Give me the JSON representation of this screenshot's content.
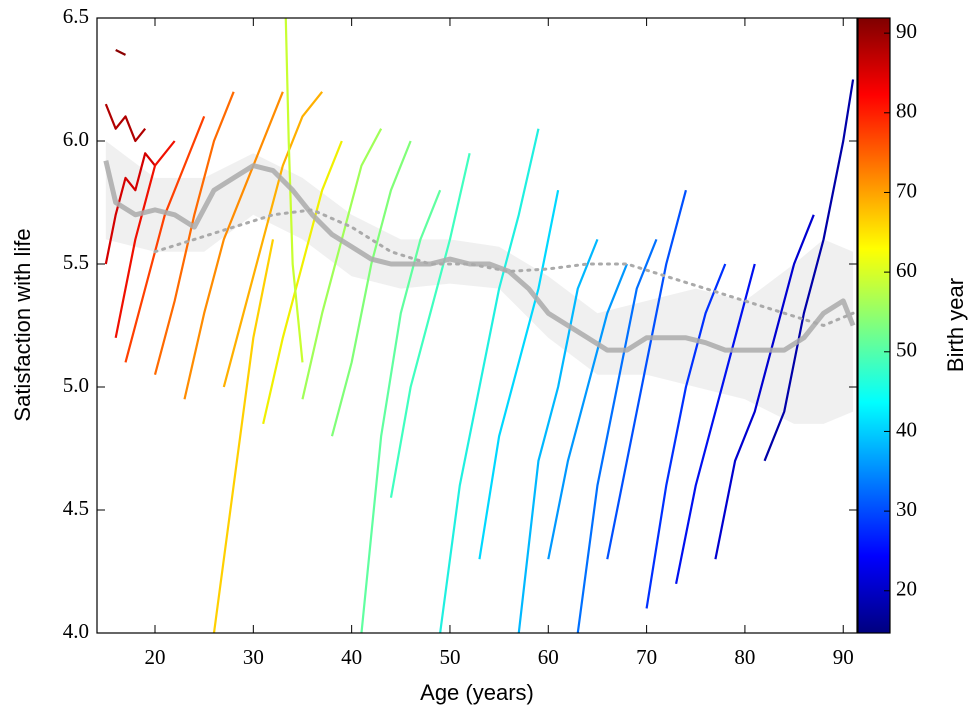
{
  "chart_data": {
    "type": "line",
    "xlabel": "Age (years)",
    "ylabel": "Satisfaction with life",
    "xlim": [
      14.1,
      91.4
    ],
    "ylim": [
      4.0,
      6.5
    ],
    "xticks": [
      20,
      30,
      40,
      50,
      60,
      70,
      80,
      90
    ],
    "yticks": [
      {
        "value": 4.0,
        "label": "4.0"
      },
      4.5,
      {
        "value": 5.0,
        "label": "5.0"
      },
      5.5,
      {
        "value": 6.0,
        "label": "6.0"
      },
      6.5
    ],
    "colorbar": {
      "label": "Birth year",
      "lim": [
        14.7,
        91.9
      ],
      "ticks": [
        20,
        30,
        40,
        50,
        60,
        70,
        80,
        90
      ],
      "colormap": "jet"
    },
    "band": {
      "color": "#e6e6e6",
      "x": [
        15,
        20,
        25,
        30,
        35,
        40,
        45,
        50,
        55,
        60,
        65,
        70,
        75,
        80,
        85,
        88,
        91
      ],
      "upper": [
        6.0,
        5.85,
        5.85,
        5.95,
        5.85,
        5.7,
        5.6,
        5.6,
        5.57,
        5.45,
        5.3,
        5.35,
        5.4,
        5.35,
        5.5,
        5.6,
        5.55
      ],
      "lower": [
        5.6,
        5.55,
        5.55,
        5.7,
        5.6,
        5.45,
        5.4,
        5.42,
        5.4,
        5.2,
        5.05,
        5.05,
        5.0,
        4.95,
        4.85,
        4.85,
        4.9
      ]
    },
    "series": [
      {
        "color": "#8b0000",
        "x": [
          16,
          17
        ],
        "values": [
          6.37,
          6.35
        ]
      },
      {
        "color": "#b00000",
        "x": [
          15,
          16,
          17,
          18,
          19
        ],
        "values": [
          6.15,
          6.05,
          6.1,
          6.0,
          6.05
        ]
      },
      {
        "color": "#d40000",
        "x": [
          15,
          16,
          17,
          18,
          19,
          20
        ],
        "values": [
          5.5,
          5.7,
          5.85,
          5.8,
          5.95,
          5.9
        ]
      },
      {
        "color": "#f01000",
        "x": [
          16,
          18,
          20,
          22
        ],
        "values": [
          5.2,
          5.6,
          5.9,
          6.0
        ]
      },
      {
        "color": "#ff4000",
        "x": [
          17,
          19,
          21,
          23,
          25
        ],
        "values": [
          5.1,
          5.4,
          5.7,
          5.9,
          6.1
        ]
      },
      {
        "color": "#ff6a00",
        "x": [
          20,
          22,
          24,
          26,
          28
        ],
        "values": [
          5.05,
          5.35,
          5.7,
          6.0,
          6.2
        ]
      },
      {
        "color": "#ff8c00",
        "x": [
          23,
          25,
          27,
          29,
          31,
          33
        ],
        "values": [
          4.95,
          5.3,
          5.6,
          5.8,
          6.0,
          6.2
        ]
      },
      {
        "color": "#ffb000",
        "x": [
          27,
          29,
          31,
          33,
          35,
          37
        ],
        "values": [
          5.0,
          5.3,
          5.6,
          5.9,
          6.1,
          6.2
        ]
      },
      {
        "color": "#ffd000",
        "x": [
          26,
          28,
          30,
          32
        ],
        "values": [
          4.0,
          4.6,
          5.2,
          5.6
        ]
      },
      {
        "color": "#f0f000",
        "x": [
          31,
          33,
          35,
          37,
          39
        ],
        "values": [
          4.85,
          5.2,
          5.5,
          5.8,
          6.0
        ]
      },
      {
        "color": "#c8ff30",
        "x": [
          33.3,
          33.6,
          34,
          35
        ],
        "values": [
          6.5,
          6.0,
          5.5,
          5.1
        ]
      },
      {
        "color": "#a0ff58",
        "x": [
          35,
          37,
          39,
          41,
          43
        ],
        "values": [
          4.95,
          5.3,
          5.6,
          5.9,
          6.05
        ]
      },
      {
        "color": "#80ff78",
        "x": [
          38,
          40,
          42,
          44,
          46
        ],
        "values": [
          4.8,
          5.1,
          5.5,
          5.8,
          6.0
        ]
      },
      {
        "color": "#60ffa0",
        "x": [
          41,
          43,
          45,
          47,
          49
        ],
        "values": [
          4.0,
          4.8,
          5.3,
          5.6,
          5.8
        ]
      },
      {
        "color": "#40ffc0",
        "x": [
          44,
          46,
          48,
          50,
          52
        ],
        "values": [
          4.55,
          5.0,
          5.3,
          5.6,
          5.95
        ]
      },
      {
        "color": "#20f0e0",
        "x": [
          49,
          51,
          53,
          55,
          57,
          59
        ],
        "values": [
          4.0,
          4.6,
          5.0,
          5.4,
          5.7,
          6.05
        ]
      },
      {
        "color": "#00d8ff",
        "x": [
          53,
          55,
          57,
          59,
          61
        ],
        "values": [
          4.3,
          4.8,
          5.1,
          5.4,
          5.8
        ]
      },
      {
        "color": "#00b8ff",
        "x": [
          57,
          59,
          61,
          63,
          65
        ],
        "values": [
          4.0,
          4.7,
          5.0,
          5.4,
          5.6
        ]
      },
      {
        "color": "#0098ff",
        "x": [
          60,
          62,
          64,
          66,
          68
        ],
        "values": [
          4.3,
          4.7,
          5.0,
          5.3,
          5.5
        ]
      },
      {
        "color": "#0070ff",
        "x": [
          63,
          65,
          67,
          69,
          71
        ],
        "values": [
          4.0,
          4.6,
          5.0,
          5.4,
          5.6
        ]
      },
      {
        "color": "#0050ff",
        "x": [
          66,
          68,
          70,
          72,
          74
        ],
        "values": [
          4.3,
          4.7,
          5.1,
          5.5,
          5.8
        ]
      },
      {
        "color": "#0030ff",
        "x": [
          70,
          72,
          74,
          76,
          78
        ],
        "values": [
          4.1,
          4.6,
          5.0,
          5.3,
          5.5
        ]
      },
      {
        "color": "#0010f0",
        "x": [
          73,
          75,
          77,
          79,
          81
        ],
        "values": [
          4.2,
          4.6,
          4.9,
          5.2,
          5.5
        ]
      },
      {
        "color": "#0000d0",
        "x": [
          77,
          79,
          81,
          83,
          85,
          87
        ],
        "values": [
          4.3,
          4.7,
          4.9,
          5.2,
          5.5,
          5.7
        ]
      },
      {
        "color": "#0000a8",
        "x": [
          82,
          84,
          86,
          88,
          90,
          91
        ],
        "values": [
          4.7,
          4.9,
          5.3,
          5.6,
          6.0,
          6.25
        ]
      },
      {
        "color": "#aaaaaa",
        "style": "dotted",
        "x": [
          20,
          24,
          28,
          32,
          36,
          40,
          44,
          48,
          52,
          56,
          60,
          64,
          68,
          72,
          76,
          80,
          84,
          88,
          91
        ],
        "values": [
          5.55,
          5.6,
          5.65,
          5.7,
          5.72,
          5.65,
          5.55,
          5.5,
          5.5,
          5.47,
          5.48,
          5.5,
          5.5,
          5.45,
          5.4,
          5.35,
          5.3,
          5.25,
          5.3
        ]
      },
      {
        "color": "#aaaaaa",
        "style": "thick",
        "x": [
          15,
          16,
          18,
          20,
          22,
          24,
          26,
          28,
          30,
          32,
          34,
          36,
          38,
          40,
          42,
          44,
          46,
          48,
          50,
          52,
          54,
          56,
          58,
          60,
          62,
          64,
          66,
          68,
          70,
          72,
          74,
          76,
          78,
          80,
          82,
          84,
          86,
          88,
          90,
          91
        ],
        "values": [
          5.92,
          5.75,
          5.7,
          5.72,
          5.7,
          5.65,
          5.8,
          5.85,
          5.9,
          5.88,
          5.8,
          5.7,
          5.62,
          5.57,
          5.52,
          5.5,
          5.5,
          5.5,
          5.52,
          5.5,
          5.5,
          5.47,
          5.4,
          5.3,
          5.25,
          5.2,
          5.15,
          5.15,
          5.2,
          5.2,
          5.2,
          5.18,
          5.15,
          5.15,
          5.15,
          5.15,
          5.2,
          5.3,
          5.35,
          5.25
        ]
      }
    ]
  }
}
